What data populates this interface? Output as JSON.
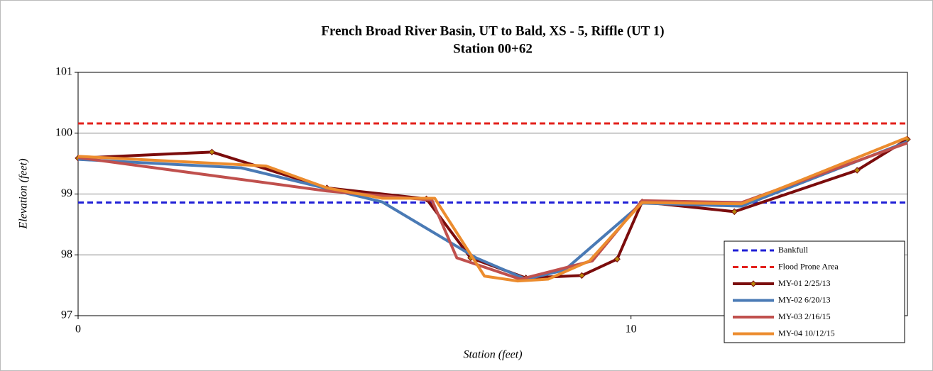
{
  "chart_data": {
    "type": "line",
    "title": "French Broad River Basin, UT to Bald, XS - 5, Riffle (UT 1)",
    "subtitle": "Station 00+62",
    "x_label": "Station (feet)",
    "y_label": "Elevation (feet)",
    "xlim": [
      0,
      15
    ],
    "xticks": [
      0,
      10
    ],
    "ylim": [
      97,
      101
    ],
    "yticks": [
      97,
      98,
      99,
      100,
      101
    ],
    "grid": true,
    "legend": "lower right",
    "series": [
      {
        "name": "Bankfull",
        "color": "#1f1fd6",
        "dashed": true,
        "x": [
          0,
          15
        ],
        "values": [
          98.86,
          98.86
        ]
      },
      {
        "name": "Flood Prone Area",
        "color": "#e3201b",
        "dashed": true,
        "x": [
          0,
          15
        ],
        "values": [
          100.16,
          100.16
        ]
      },
      {
        "name": "MY-01 2/25/13",
        "color": "#7b0c0c",
        "markers": true,
        "x": [
          0,
          2.42,
          4.5,
          6.3,
          7.1,
          8.1,
          9.11,
          9.75,
          10.2,
          11.87,
          14.09,
          15
        ],
        "values": [
          99.59,
          99.69,
          99.1,
          98.92,
          97.95,
          97.62,
          97.66,
          97.93,
          98.87,
          98.71,
          99.39,
          99.9
        ]
      },
      {
        "name": "MY-02 6/20/13",
        "color": "#4a7ab5",
        "x": [
          0,
          2.95,
          5.5,
          7.2,
          8.1,
          8.8,
          10.2,
          12.0,
          15
        ],
        "values": [
          99.57,
          99.43,
          98.87,
          97.95,
          97.6,
          97.75,
          98.85,
          98.8,
          99.86
        ]
      },
      {
        "name": "MY-03 2/16/15",
        "color": "#c0504d",
        "x": [
          0,
          4.5,
          6.4,
          6.85,
          8.0,
          9.3,
          10.2,
          12.0,
          15
        ],
        "values": [
          99.6,
          99.05,
          98.9,
          97.95,
          97.6,
          97.9,
          98.89,
          98.86,
          99.84
        ]
      },
      {
        "name": "MY-04 10/12/15",
        "color": "#ec8c2e",
        "x": [
          0,
          3.4,
          4.5,
          5.5,
          6.45,
          7.35,
          7.95,
          8.5,
          9.25,
          10.2,
          12.0,
          13.0,
          15
        ],
        "values": [
          99.62,
          99.46,
          99.1,
          98.93,
          98.93,
          97.65,
          97.57,
          97.6,
          97.9,
          98.86,
          98.84,
          99.2,
          99.93
        ]
      }
    ]
  }
}
